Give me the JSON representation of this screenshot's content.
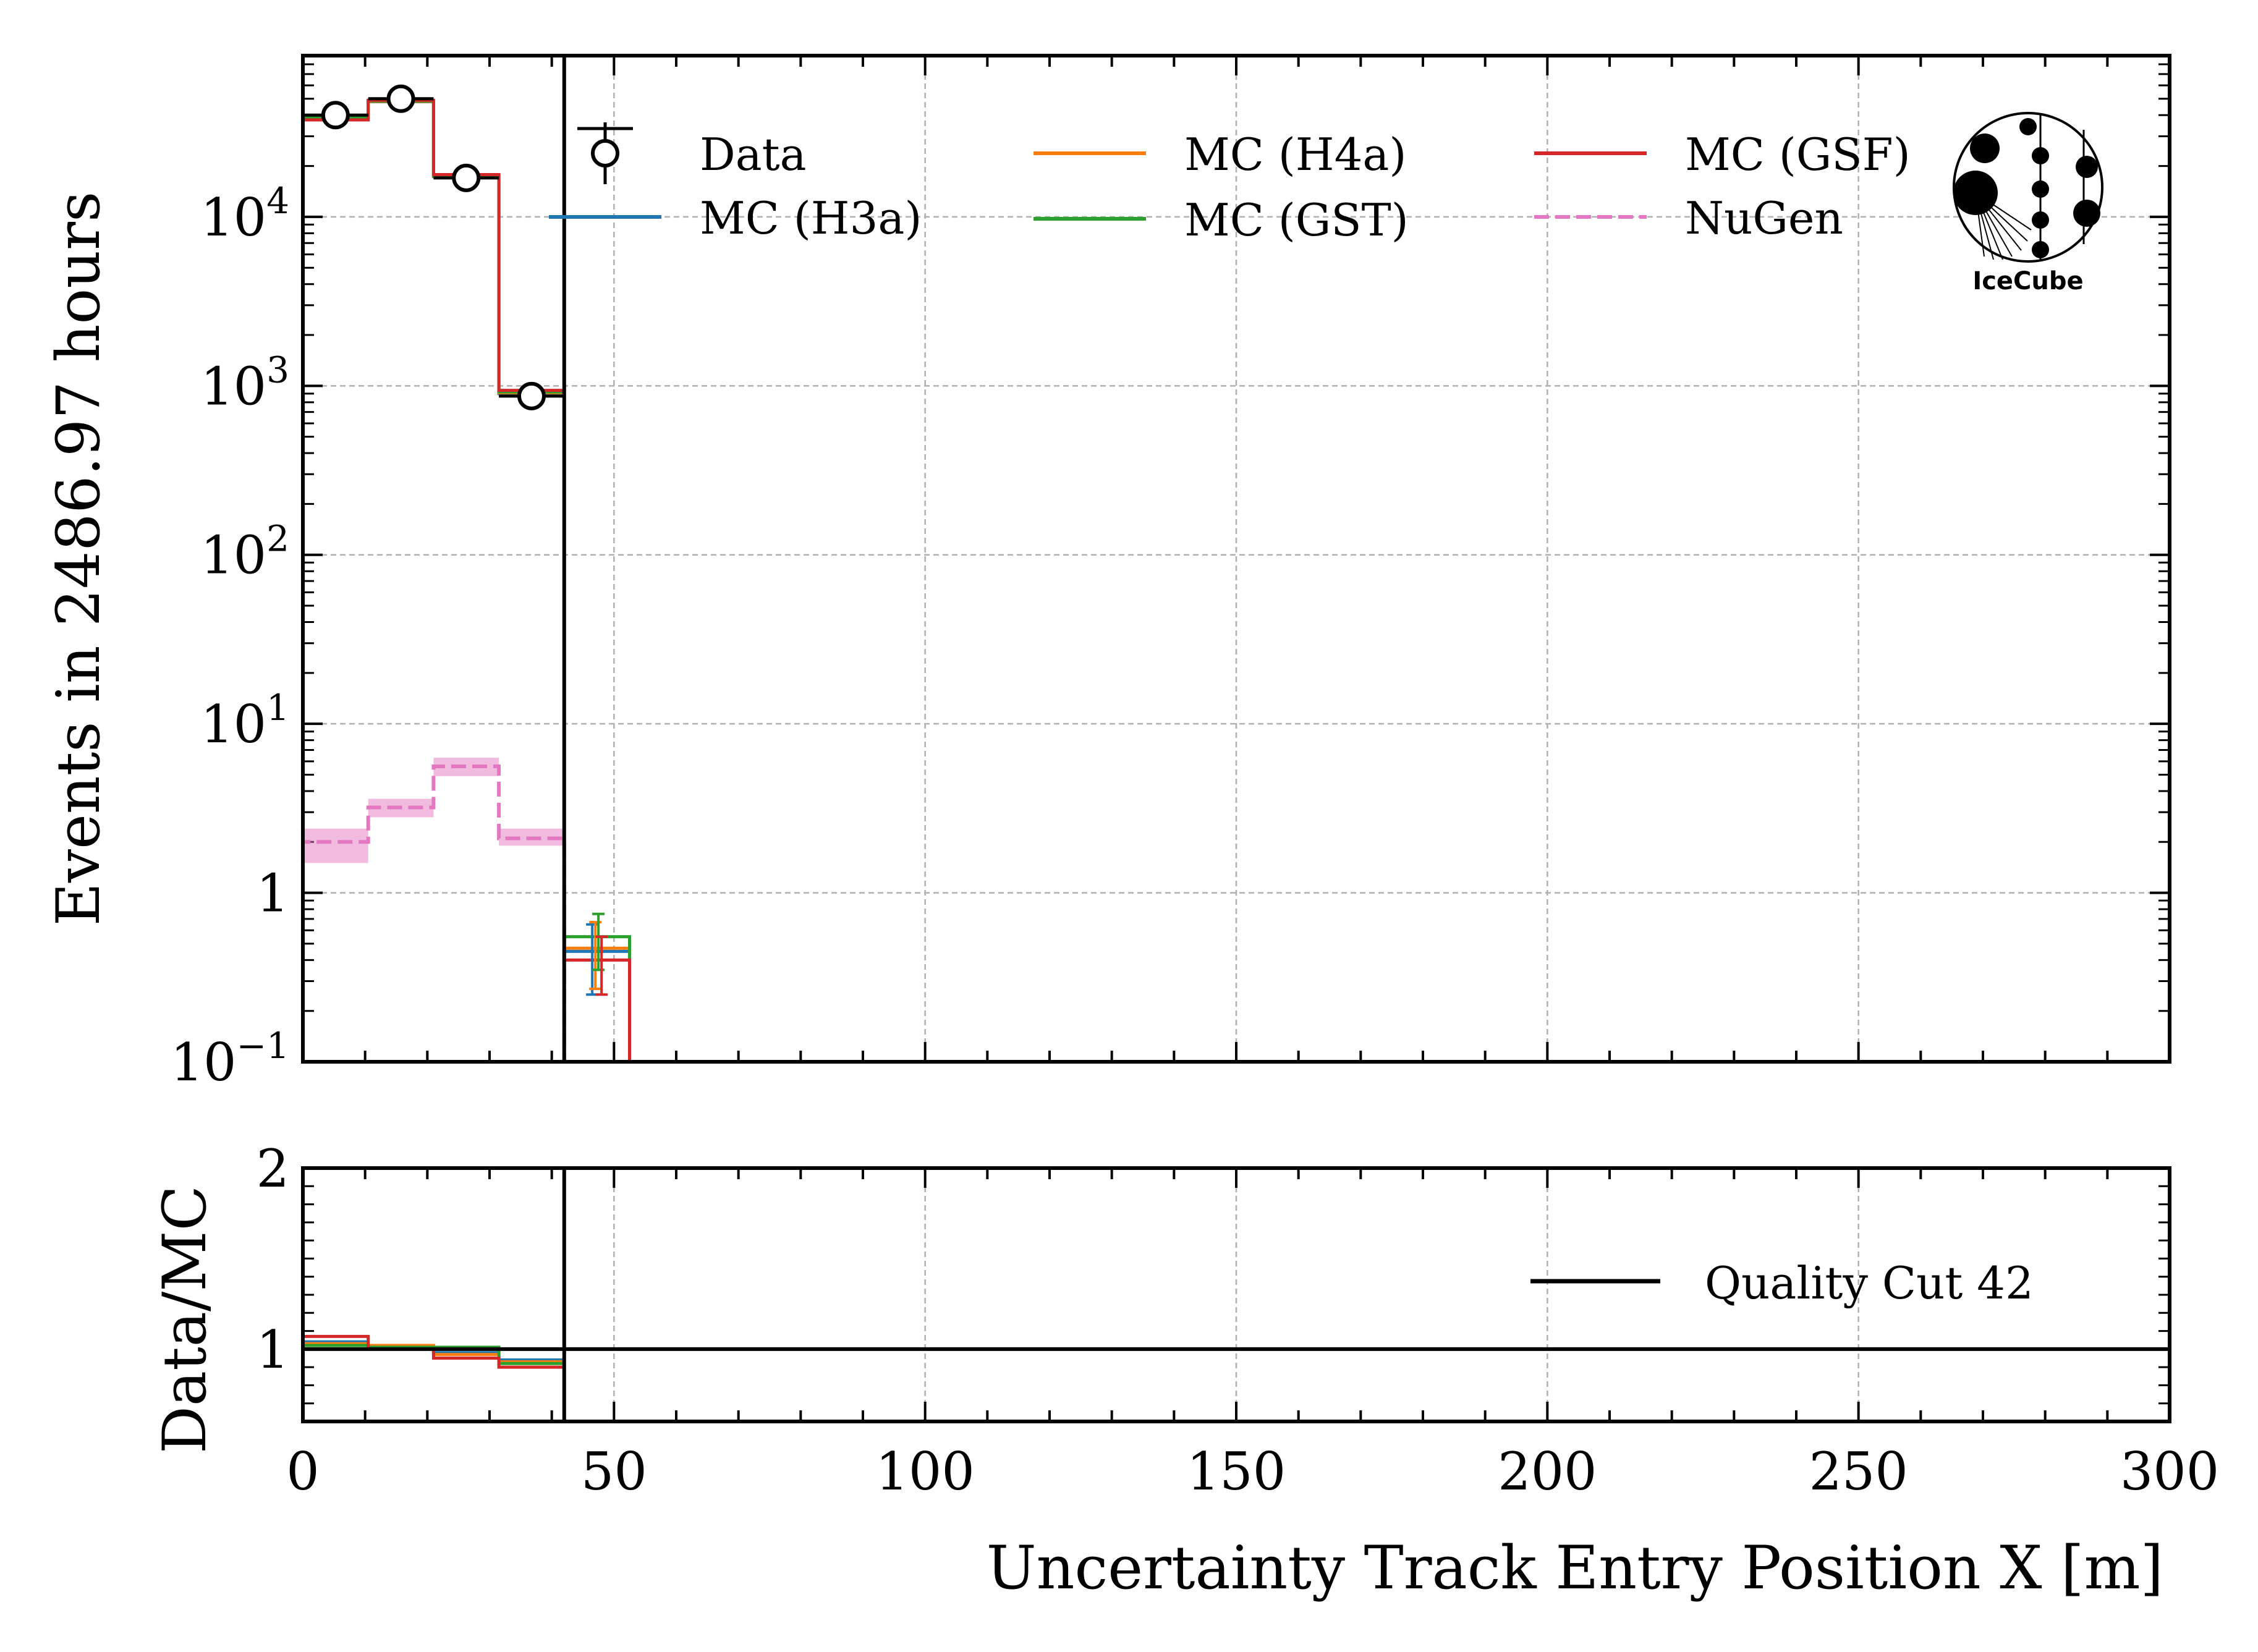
{
  "chart_data": {
    "type": "histogram",
    "xlabel": "Uncertainty Track Entry Position X [m]",
    "xlim": [
      0,
      300
    ],
    "x_ticks": [
      "0",
      "50",
      "100",
      "150",
      "200",
      "250",
      "300"
    ],
    "bin_edges": [
      0,
      10.5,
      21,
      31.5,
      42,
      52.5
    ],
    "quality_cut": {
      "label": "Quality Cut 42",
      "x": 42,
      "color": "#000000"
    },
    "grid": true,
    "logo_text": "IceCube",
    "main_panel": {
      "ylabel": "Events in 2486.97 hours",
      "yscale": "log",
      "ylim": [
        0.1,
        90000
      ],
      "y_ticks": [
        {
          "value": 0.1,
          "base": "10",
          "exp": "−1"
        },
        {
          "value": 1,
          "base": "1",
          "exp": ""
        },
        {
          "value": 10,
          "base": "10",
          "exp": "1"
        },
        {
          "value": 100,
          "base": "10",
          "exp": "2"
        },
        {
          "value": 1000,
          "base": "10",
          "exp": "3"
        },
        {
          "value": 10000,
          "base": "10",
          "exp": "4"
        }
      ],
      "legend_position": "top",
      "data": {
        "name": "Data",
        "x": [
          5.25,
          15.75,
          26.25,
          36.75
        ],
        "y": [
          40000,
          50000,
          17000,
          870
        ],
        "yerr": [
          200,
          224,
          130,
          30
        ]
      },
      "series": [
        {
          "name": "MC (H3a)",
          "color": "#1f77b4",
          "style": "solid",
          "values": [
            38000,
            48000,
            17500,
            900,
            0.45
          ],
          "err_last": 0.2
        },
        {
          "name": "MC (H4a)",
          "color": "#ff7f0e",
          "style": "solid",
          "values": [
            38500,
            48200,
            17300,
            910,
            0.47
          ],
          "err_last": 0.2
        },
        {
          "name": "MC (GST)",
          "color": "#2ca02c",
          "style": "solid",
          "values": [
            39000,
            48500,
            17400,
            920,
            0.55
          ],
          "err_last": 0.2
        },
        {
          "name": "MC (GSF)",
          "color": "#d62728",
          "style": "solid",
          "values": [
            37500,
            49000,
            17800,
            940,
            0.4
          ],
          "err_last": 0.15
        },
        {
          "name": "NuGen",
          "color": "#e377c2",
          "style": "dashed",
          "values": [
            2.0,
            3.2,
            5.6,
            2.1
          ],
          "band_low": [
            1.5,
            2.8,
            4.9,
            1.9
          ],
          "band_high": [
            2.4,
            3.6,
            6.3,
            2.4
          ]
        }
      ]
    },
    "ratio_panel": {
      "ylabel": "Data/MC",
      "ylim": [
        0.6,
        2
      ],
      "y_ticks": [
        "1",
        "2"
      ],
      "reference": 1,
      "series": [
        {
          "name": "MC (H3a)",
          "color": "#1f77b4",
          "values": [
            1.04,
            1.02,
            0.98,
            0.94
          ]
        },
        {
          "name": "MC (H4a)",
          "color": "#ff7f0e",
          "values": [
            1.03,
            1.02,
            0.97,
            0.93
          ]
        },
        {
          "name": "MC (GST)",
          "color": "#2ca02c",
          "values": [
            1.02,
            1.01,
            1.01,
            0.92
          ]
        },
        {
          "name": "MC (GSF)",
          "color": "#d62728",
          "values": [
            1.07,
            1.0,
            0.95,
            0.9
          ]
        }
      ]
    }
  }
}
